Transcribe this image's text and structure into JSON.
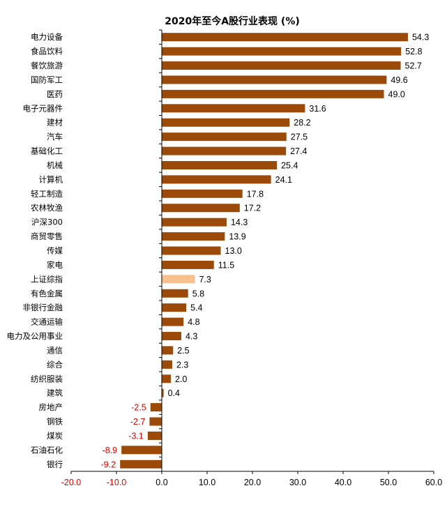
{
  "chart_data": {
    "type": "bar",
    "orientation": "horizontal",
    "title": "2020年至今A股行业表现 (%)",
    "xlim": [
      -20,
      60
    ],
    "xticks": [
      "-20.0",
      "-10.0",
      "0.0",
      "10.0",
      "20.0",
      "30.0",
      "40.0",
      "50.0",
      "60.0"
    ],
    "xtick_values": [
      -20,
      -10,
      0,
      10,
      20,
      30,
      40,
      50,
      60
    ],
    "grid": false,
    "legend": "none",
    "colors": {
      "bar": "#9c4a0a",
      "highlight": "#f8c08c",
      "negative_label": "#e00000",
      "axis": "#000000"
    },
    "categories": [
      "电力设备",
      "食品饮料",
      "餐饮旅游",
      "国防军工",
      "医药",
      "电子元器件",
      "建材",
      "汽车",
      "基础化工",
      "机械",
      "计算机",
      "轻工制造",
      "农林牧渔",
      "沪深300",
      "商贸零售",
      "传媒",
      "家电",
      "上证综指",
      "有色金属",
      "非银行金融",
      "交通运输",
      "电力及公用事业",
      "通信",
      "综合",
      "纺织服装",
      "建筑",
      "房地产",
      "钢铁",
      "煤炭",
      "石油石化",
      "银行"
    ],
    "values": [
      54.3,
      52.8,
      52.7,
      49.6,
      49.0,
      31.6,
      28.2,
      27.5,
      27.4,
      25.4,
      24.1,
      17.8,
      17.2,
      14.3,
      13.9,
      13.0,
      11.5,
      7.3,
      5.8,
      5.4,
      4.8,
      4.3,
      2.5,
      2.3,
      2.0,
      0.4,
      -2.5,
      -2.7,
      -3.1,
      -8.9,
      -9.2
    ],
    "value_labels": [
      "54.3",
      "52.8",
      "52.7",
      "49.6",
      "49.0",
      "31.6",
      "28.2",
      "27.5",
      "27.4",
      "25.4",
      "24.1",
      "17.8",
      "17.2",
      "14.3",
      "13.9",
      "13.0",
      "11.5",
      "7.3",
      "5.8",
      "5.4",
      "4.8",
      "4.3",
      "2.5",
      "2.3",
      "2.0",
      "0.4",
      "-2.5",
      "-2.7",
      "-3.1",
      "-8.9",
      "-9.2"
    ],
    "highlight": [
      "上证综指"
    ]
  }
}
